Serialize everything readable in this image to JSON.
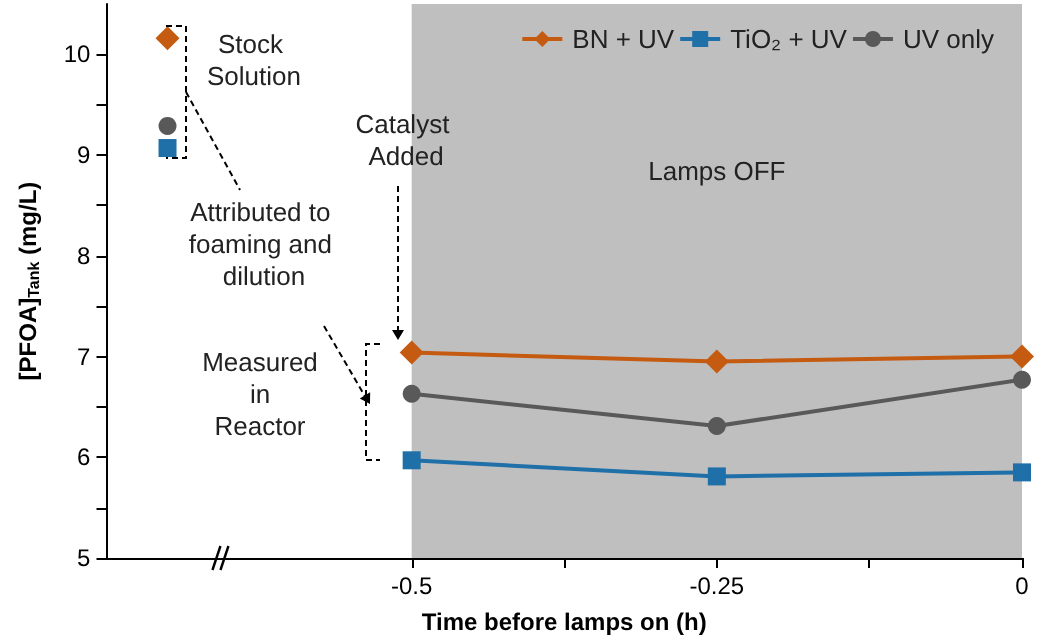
{
  "chart_data": {
    "type": "line",
    "xlabel": "Time before lamps on (h)",
    "ylabel": "[PFOA]$_{Tank}$ (mg/L)",
    "x": [
      -0.7,
      -0.6,
      -0.5,
      -0.25,
      0
    ],
    "series": [
      {
        "name": "BN + UV",
        "color": "#c55a11",
        "marker": "diamond",
        "values": [
          10.16,
          null,
          7.04,
          6.95,
          7.0
        ]
      },
      {
        "name": "TiO₂ + UV",
        "color": "#1f6fa8",
        "marker": "square",
        "values": [
          9.07,
          null,
          5.97,
          5.81,
          5.85
        ]
      },
      {
        "name": "UV only",
        "color": "#595959",
        "marker": "circle",
        "values": [
          9.29,
          null,
          6.63,
          6.31,
          6.77
        ]
      }
    ],
    "xlim": [
      -0.75,
      0
    ],
    "xticks": [
      {
        "value": -0.5,
        "label": "-0.5"
      },
      {
        "value": -0.375,
        "label": null
      },
      {
        "value": -0.25,
        "label": "-0.25"
      },
      {
        "value": -0.125,
        "label": null
      },
      {
        "value": 0,
        "label": "0"
      }
    ],
    "ylim": [
      5,
      10.5
    ],
    "yticks": [
      5,
      {
        "value": 5.5,
        "label": null
      },
      6,
      {
        "value": 6.5,
        "label": null
      },
      7,
      {
        "value": 7.5,
        "label": null
      },
      8,
      {
        "value": 8.5,
        "label": null
      },
      9,
      {
        "value": 9.5,
        "label": null
      },
      10
    ],
    "bands": [
      {
        "axis": "x",
        "from": -0.5,
        "to": 0,
        "label": "Lamps OFF",
        "color": "#bfbfbf"
      }
    ],
    "annotations": [
      "Stock Solution",
      "Catalyst Added",
      "Attributed to foaming and dilution",
      "Measured in Reactor"
    ],
    "legend": "top right",
    "grid": false,
    "line_style": "solid"
  }
}
